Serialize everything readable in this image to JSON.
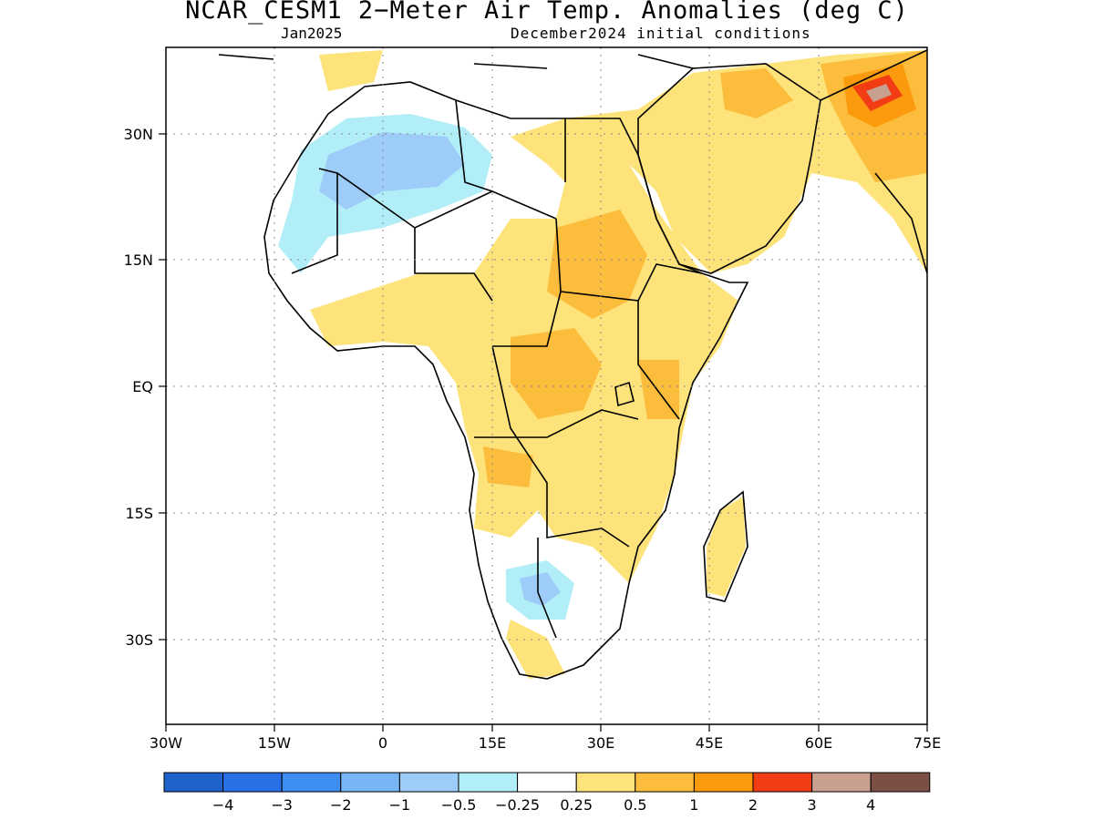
{
  "title": "NCAR_CESM1 2−Meter Air Temp. Anomalies (deg C)",
  "subtitle_left": "Jan2025",
  "subtitle_right": "December2024 initial conditions",
  "map": {
    "lon_range": [
      -30,
      75
    ],
    "lat_range": [
      -42,
      38
    ],
    "x_ticks": [
      "30W",
      "15W",
      "0",
      "15E",
      "30E",
      "45E",
      "60E",
      "75E"
    ],
    "y_ticks": [
      "30N",
      "15N",
      "EQ",
      "15S",
      "30S"
    ]
  },
  "legend": {
    "colors": [
      "#1f62cc",
      "#2a70e6",
      "#3d8ef0",
      "#78b5f5",
      "#9cccf7",
      "#b2eef8",
      "#ffffff",
      "#fde37a",
      "#fdbd3c",
      "#fa9a0c",
      "#f23c14",
      "#c9a090",
      "#7c4f44"
    ],
    "labels": [
      "−4",
      "−3",
      "−2",
      "−1",
      "−0.5",
      "−0.25",
      "0.25",
      "0.5",
      "1",
      "2",
      "3",
      "4"
    ]
  }
}
